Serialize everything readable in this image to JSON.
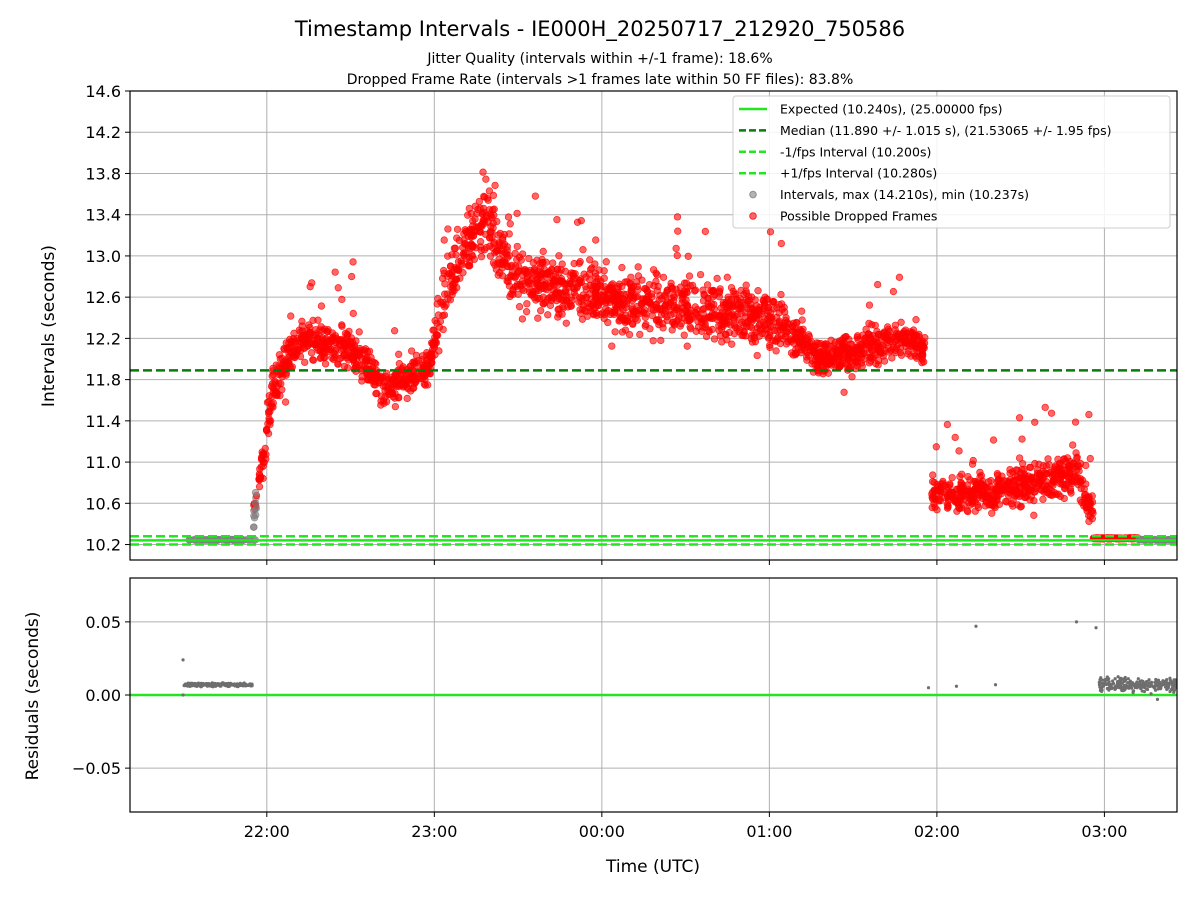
{
  "chart_data": {
    "type": "scatter",
    "title": "Timestamp Intervals - IE000H_20250717_212920_750586",
    "subtitle_lines": [
      "Jitter Quality (intervals within +/-1 frame): 18.6%",
      "Dropped Frame Rate (intervals >1 frames late within 50 FF files): 83.8%"
    ],
    "xlabel": "Time (UTC)",
    "x_ticks": [
      "22:00",
      "23:00",
      "00:00",
      "01:00",
      "02:00",
      "03:00"
    ],
    "x_tick_minutes": [
      0,
      60,
      120,
      180,
      240,
      300
    ],
    "x_range_minutes": [
      -49,
      326
    ],
    "top_panel": {
      "ylabel": "Intervals (seconds)",
      "ylim": [
        10.05,
        14.6
      ],
      "y_ticks": [
        "10.2",
        "10.6",
        "11.0",
        "11.4",
        "11.8",
        "12.2",
        "12.6",
        "13.0",
        "13.4",
        "13.8",
        "14.2",
        "14.6"
      ],
      "grid": true,
      "legend_position": "top-right",
      "reference_lines": [
        {
          "name": "Expected (10.240s), (25.00000 fps)",
          "y": 10.24,
          "style": "solid",
          "color": "#22e622"
        },
        {
          "name": "Median (11.890 +/- 1.015 s), (21.53065 +/- 1.95 fps)",
          "y": 11.89,
          "style": "dashed",
          "color": "#0a7a0a"
        },
        {
          "name": "-1/fps Interval (10.200s)",
          "y": 10.2,
          "style": "dashed",
          "color": "#22e622"
        },
        {
          "name": "+1/fps Interval (10.280s)",
          "y": 10.28,
          "style": "dashed",
          "color": "#22e622"
        }
      ],
      "scatter_series": [
        {
          "name": "Intervals, max (14.210s), min (10.237s)",
          "color": "#808080"
        },
        {
          "name": "Possible Dropped Frames",
          "color": "#ff0000"
        }
      ],
      "trend_segments_seconds": [
        {
          "from": [
            -28,
            10.245
          ],
          "to": [
            -4,
            10.245
          ],
          "kind": "expected"
        },
        {
          "from": [
            -5,
            10.4
          ],
          "to": [
            -2,
            10.9
          ],
          "kind": "dropped"
        },
        {
          "from": [
            -2,
            10.9
          ],
          "to": [
            2,
            11.7
          ],
          "kind": "dropped"
        },
        {
          "from": [
            2,
            11.7
          ],
          "to": [
            12,
            12.2
          ],
          "kind": "dropped"
        },
        {
          "from": [
            12,
            12.2
          ],
          "to": [
            30,
            12.1
          ],
          "kind": "dropped"
        },
        {
          "from": [
            30,
            12.1
          ],
          "to": [
            42,
            11.7
          ],
          "kind": "dropped"
        },
        {
          "from": [
            42,
            11.7
          ],
          "to": [
            58,
            11.9
          ],
          "kind": "dropped"
        },
        {
          "from": [
            58,
            11.9
          ],
          "to": [
            64,
            12.7
          ],
          "kind": "dropped"
        },
        {
          "from": [
            64,
            12.7
          ],
          "to": [
            78,
            13.4
          ],
          "kind": "dropped"
        },
        {
          "from": [
            78,
            13.4
          ],
          "to": [
            88,
            12.8
          ],
          "kind": "dropped"
        },
        {
          "from": [
            88,
            12.8
          ],
          "to": [
            120,
            12.6
          ],
          "kind": "dropped"
        },
        {
          "from": [
            120,
            12.6
          ],
          "to": [
            150,
            12.5
          ],
          "kind": "dropped"
        },
        {
          "from": [
            150,
            12.5
          ],
          "to": [
            180,
            12.4
          ],
          "kind": "dropped"
        },
        {
          "from": [
            180,
            12.4
          ],
          "to": [
            200,
            12.0
          ],
          "kind": "dropped"
        },
        {
          "from": [
            200,
            12.0
          ],
          "to": [
            228,
            12.2
          ],
          "kind": "dropped"
        },
        {
          "from": [
            228,
            12.2
          ],
          "to": [
            236,
            12.1
          ],
          "kind": "dropped"
        },
        {
          "from": [
            238,
            10.7
          ],
          "to": [
            260,
            10.7
          ],
          "kind": "dropped"
        },
        {
          "from": [
            260,
            10.7
          ],
          "to": [
            290,
            10.9
          ],
          "kind": "dropped"
        },
        {
          "from": [
            290,
            10.9
          ],
          "to": [
            296,
            10.5
          ],
          "kind": "dropped"
        },
        {
          "from": [
            296,
            10.26
          ],
          "to": [
            312,
            10.26
          ],
          "kind": "dropped-flat"
        },
        {
          "from": [
            312,
            10.245
          ],
          "to": [
            326,
            10.245
          ],
          "kind": "expected"
        }
      ]
    },
    "bottom_panel": {
      "ylabel": "Residuals (seconds)",
      "ylim": [
        -0.08,
        0.08
      ],
      "y_ticks": [
        "0.05",
        "0.00",
        "−0.05"
      ],
      "y_tick_values": [
        0.05,
        0.0,
        -0.05
      ],
      "zero_line_color": "#22e622",
      "residual_clusters": [
        {
          "x_range": [
            -30,
            -5
          ],
          "y_center": 0.007,
          "spread": 0.001
        },
        {
          "x_range": [
            298,
            326
          ],
          "y_center": 0.007,
          "spread": 0.004
        }
      ],
      "residual_points": [
        {
          "x": -30,
          "y": 0.024
        },
        {
          "x": -30,
          "y": 0.0
        },
        {
          "x": 237,
          "y": 0.005
        },
        {
          "x": 247,
          "y": 0.006
        },
        {
          "x": 254,
          "y": 0.047
        },
        {
          "x": 261,
          "y": 0.007
        },
        {
          "x": 290,
          "y": 0.05
        },
        {
          "x": 297,
          "y": 0.046
        },
        {
          "x": 319,
          "y": -0.003
        }
      ]
    }
  }
}
